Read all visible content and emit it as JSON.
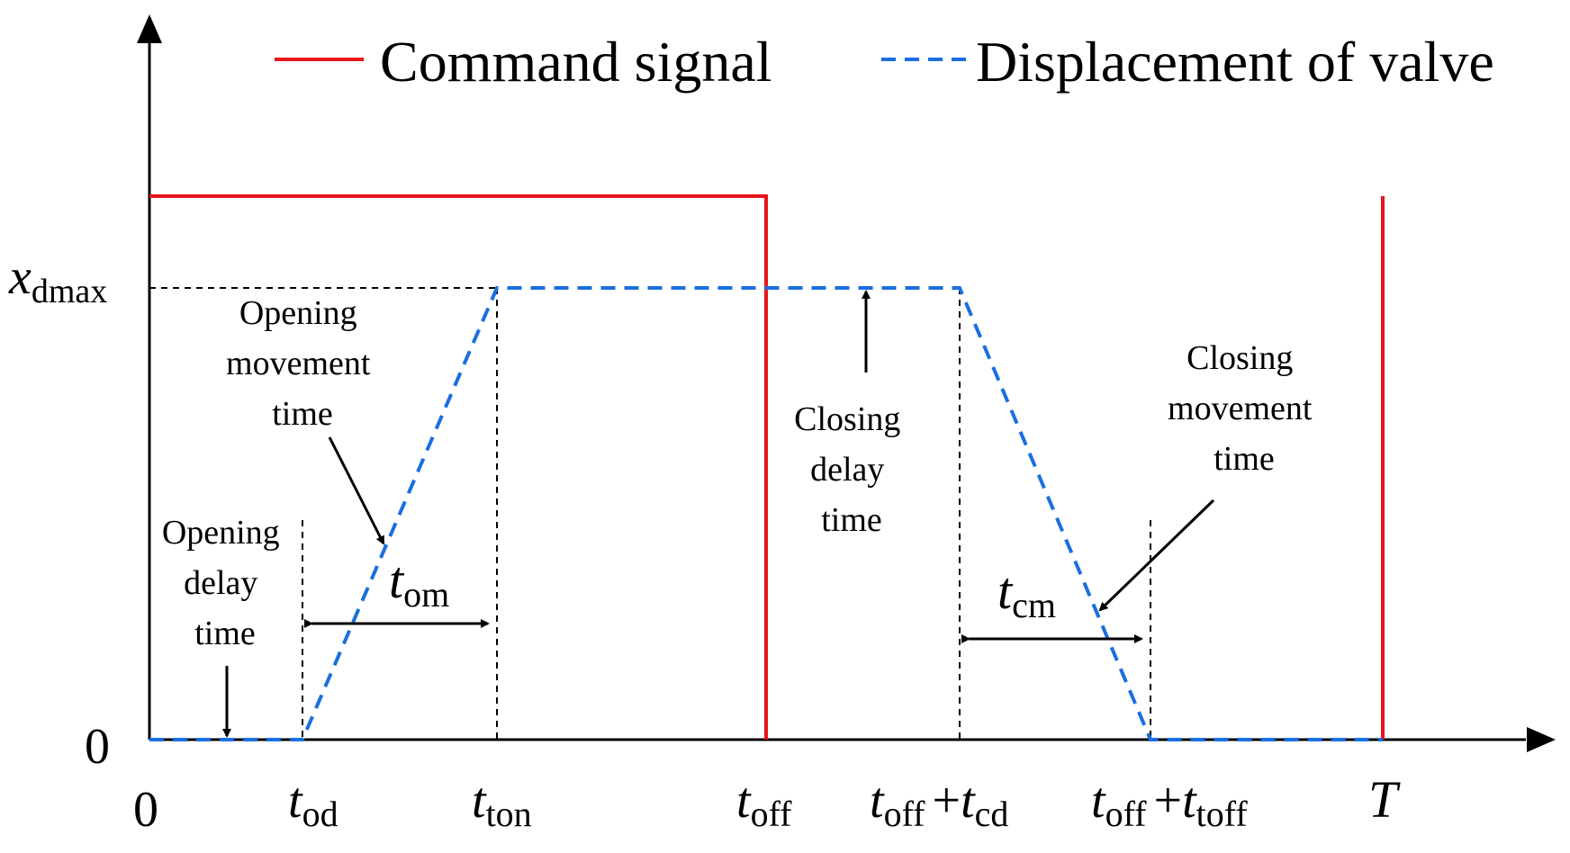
{
  "legend": {
    "command": "Command signal",
    "displacement": "Displacement of valve"
  },
  "colors": {
    "command": "#e8141b",
    "displacement": "#1a6fe0",
    "axis": "#000000"
  },
  "y_labels": {
    "zero": "0",
    "xmax_main": "x",
    "xmax_sub": "dmax"
  },
  "x_labels": {
    "origin": "0",
    "t_od": {
      "t": "t",
      "sub": "od"
    },
    "t_on": {
      "t": "t",
      "sub": "ton"
    },
    "t_off": {
      "t": "t",
      "sub": "off"
    },
    "t_off_cd": {
      "t": "t",
      "sub": "off",
      "plus": "+",
      "t2": "t",
      "sub2": "cd"
    },
    "t_off_toff": {
      "t": "t",
      "sub": "off",
      "plus": "+",
      "t2": "t",
      "sub2": "toff"
    },
    "T": "T"
  },
  "annotations": {
    "opening_movement": [
      "Opening",
      "movement",
      "time"
    ],
    "opening_delay": [
      "Opening",
      "delay",
      "time"
    ],
    "closing_delay": [
      "Closing",
      "delay",
      "time"
    ],
    "closing_movement": [
      "Closing",
      "movement",
      "time"
    ],
    "t_om": {
      "t": "t",
      "sub": "om"
    },
    "t_cm": {
      "t": "t",
      "sub": "cm"
    }
  }
}
